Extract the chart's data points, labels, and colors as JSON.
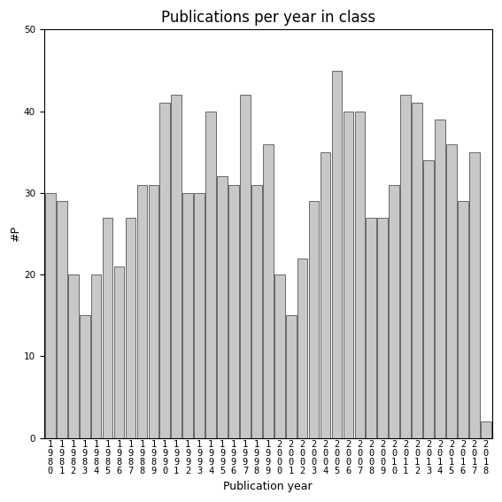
{
  "years": [
    1980,
    1981,
    1982,
    1983,
    1984,
    1985,
    1986,
    1987,
    1988,
    1989,
    1990,
    1991,
    1992,
    1993,
    1994,
    1995,
    1996,
    1997,
    1998,
    1999,
    2000,
    2001,
    2002,
    2003,
    2004,
    2005,
    2006,
    2007,
    2008,
    2009,
    2010,
    2011,
    2012,
    2013,
    2014,
    2015,
    2016,
    2017,
    2018
  ],
  "values": [
    30,
    29,
    20,
    15,
    20,
    27,
    21,
    27,
    31,
    31,
    41,
    42,
    30,
    30,
    40,
    32,
    31,
    42,
    31,
    36,
    20,
    15,
    22,
    29,
    35,
    45,
    40,
    40,
    27,
    27,
    31,
    42,
    41,
    34,
    39,
    36,
    29,
    35,
    2
  ],
  "bar_color": "#c8c8c8",
  "bar_edge_color": "#555555",
  "title": "Publications per year in class",
  "ylabel": "#P",
  "xlabel": "Publication year",
  "ylim": [
    0,
    50
  ],
  "yticks": [
    0,
    10,
    20,
    30,
    40,
    50
  ],
  "title_fontsize": 12,
  "label_fontsize": 9,
  "tick_fontsize": 7.5,
  "background_color": "#ffffff"
}
